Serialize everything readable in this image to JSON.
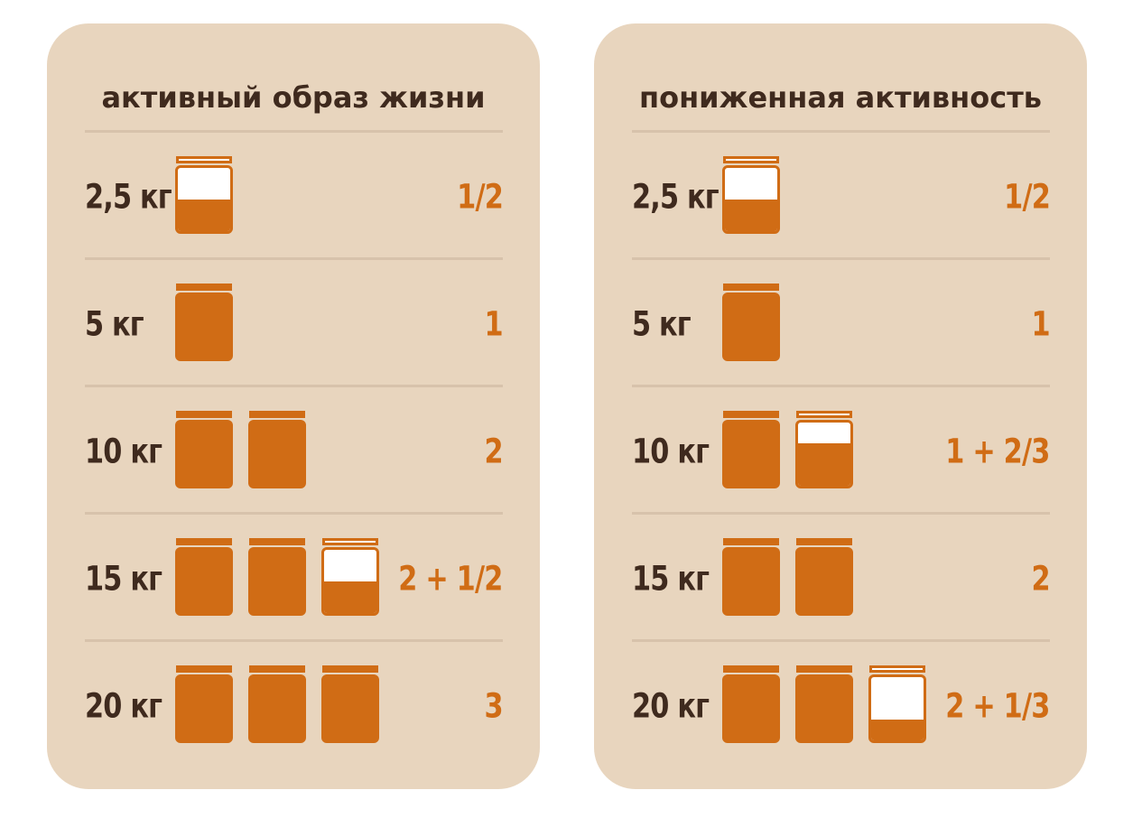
{
  "cards": [
    {
      "title": "активный образ жизни",
      "rows": [
        {
          "weight": "2,5 кг",
          "portion": "1/2",
          "jars": [
            0.5
          ]
        },
        {
          "weight": "5 кг",
          "portion": "1",
          "jars": [
            1
          ]
        },
        {
          "weight": "10 кг",
          "portion": "2",
          "jars": [
            1,
            1
          ]
        },
        {
          "weight": "15 кг",
          "portion": "2 + 1/2",
          "jars": [
            1,
            1,
            0.5
          ]
        },
        {
          "weight": "20 кг",
          "portion": "3",
          "jars": [
            1,
            1,
            1
          ]
        }
      ]
    },
    {
      "title": "пониженная активность",
      "rows": [
        {
          "weight": "2,5 кг",
          "portion": "1/2",
          "jars": [
            0.5
          ]
        },
        {
          "weight": "5 кг",
          "portion": "1",
          "jars": [
            1
          ]
        },
        {
          "weight": "10 кг",
          "portion": "1 + 2/3",
          "jars": [
            1,
            0.667
          ]
        },
        {
          "weight": "15 кг",
          "portion": "2",
          "jars": [
            1,
            1
          ]
        },
        {
          "weight": "20 кг",
          "portion": "2 + 1/3",
          "jars": [
            1,
            1,
            0.333
          ]
        }
      ]
    }
  ],
  "colors": {
    "card_background": "#e8d5be",
    "text_dark": "#3f2a1e",
    "accent": "#d06c15",
    "divider": "#d7c2ab"
  },
  "icons": {
    "jar": "jar-icon"
  }
}
